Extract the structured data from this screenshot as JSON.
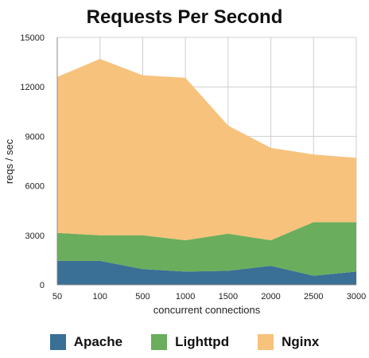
{
  "chart_data": {
    "type": "area",
    "stacked": true,
    "title": "Requests Per Second",
    "xlabel": "concurrent connections",
    "ylabel": "reqs / sec",
    "categories": [
      "50",
      "100",
      "500",
      "1000",
      "1500",
      "2000",
      "2500",
      "3000"
    ],
    "ylim": [
      0,
      15000
    ],
    "yticks": [
      "0",
      "3000",
      "6000",
      "9000",
      "12000",
      "15000"
    ],
    "grid": true,
    "legend_position": "bottom",
    "series": [
      {
        "name": "Apache",
        "color": "#3a6f96",
        "values": [
          1450,
          1450,
          950,
          800,
          850,
          1150,
          550,
          800
        ]
      },
      {
        "name": "Lighttpd",
        "color": "#6aad5c",
        "values": [
          1700,
          1550,
          2050,
          1900,
          2250,
          1550,
          3250,
          3000
        ]
      },
      {
        "name": "Nginx",
        "color": "#f7c27c",
        "values": [
          9450,
          10700,
          9700,
          9850,
          6550,
          5600,
          4100,
          3900
        ]
      }
    ]
  }
}
